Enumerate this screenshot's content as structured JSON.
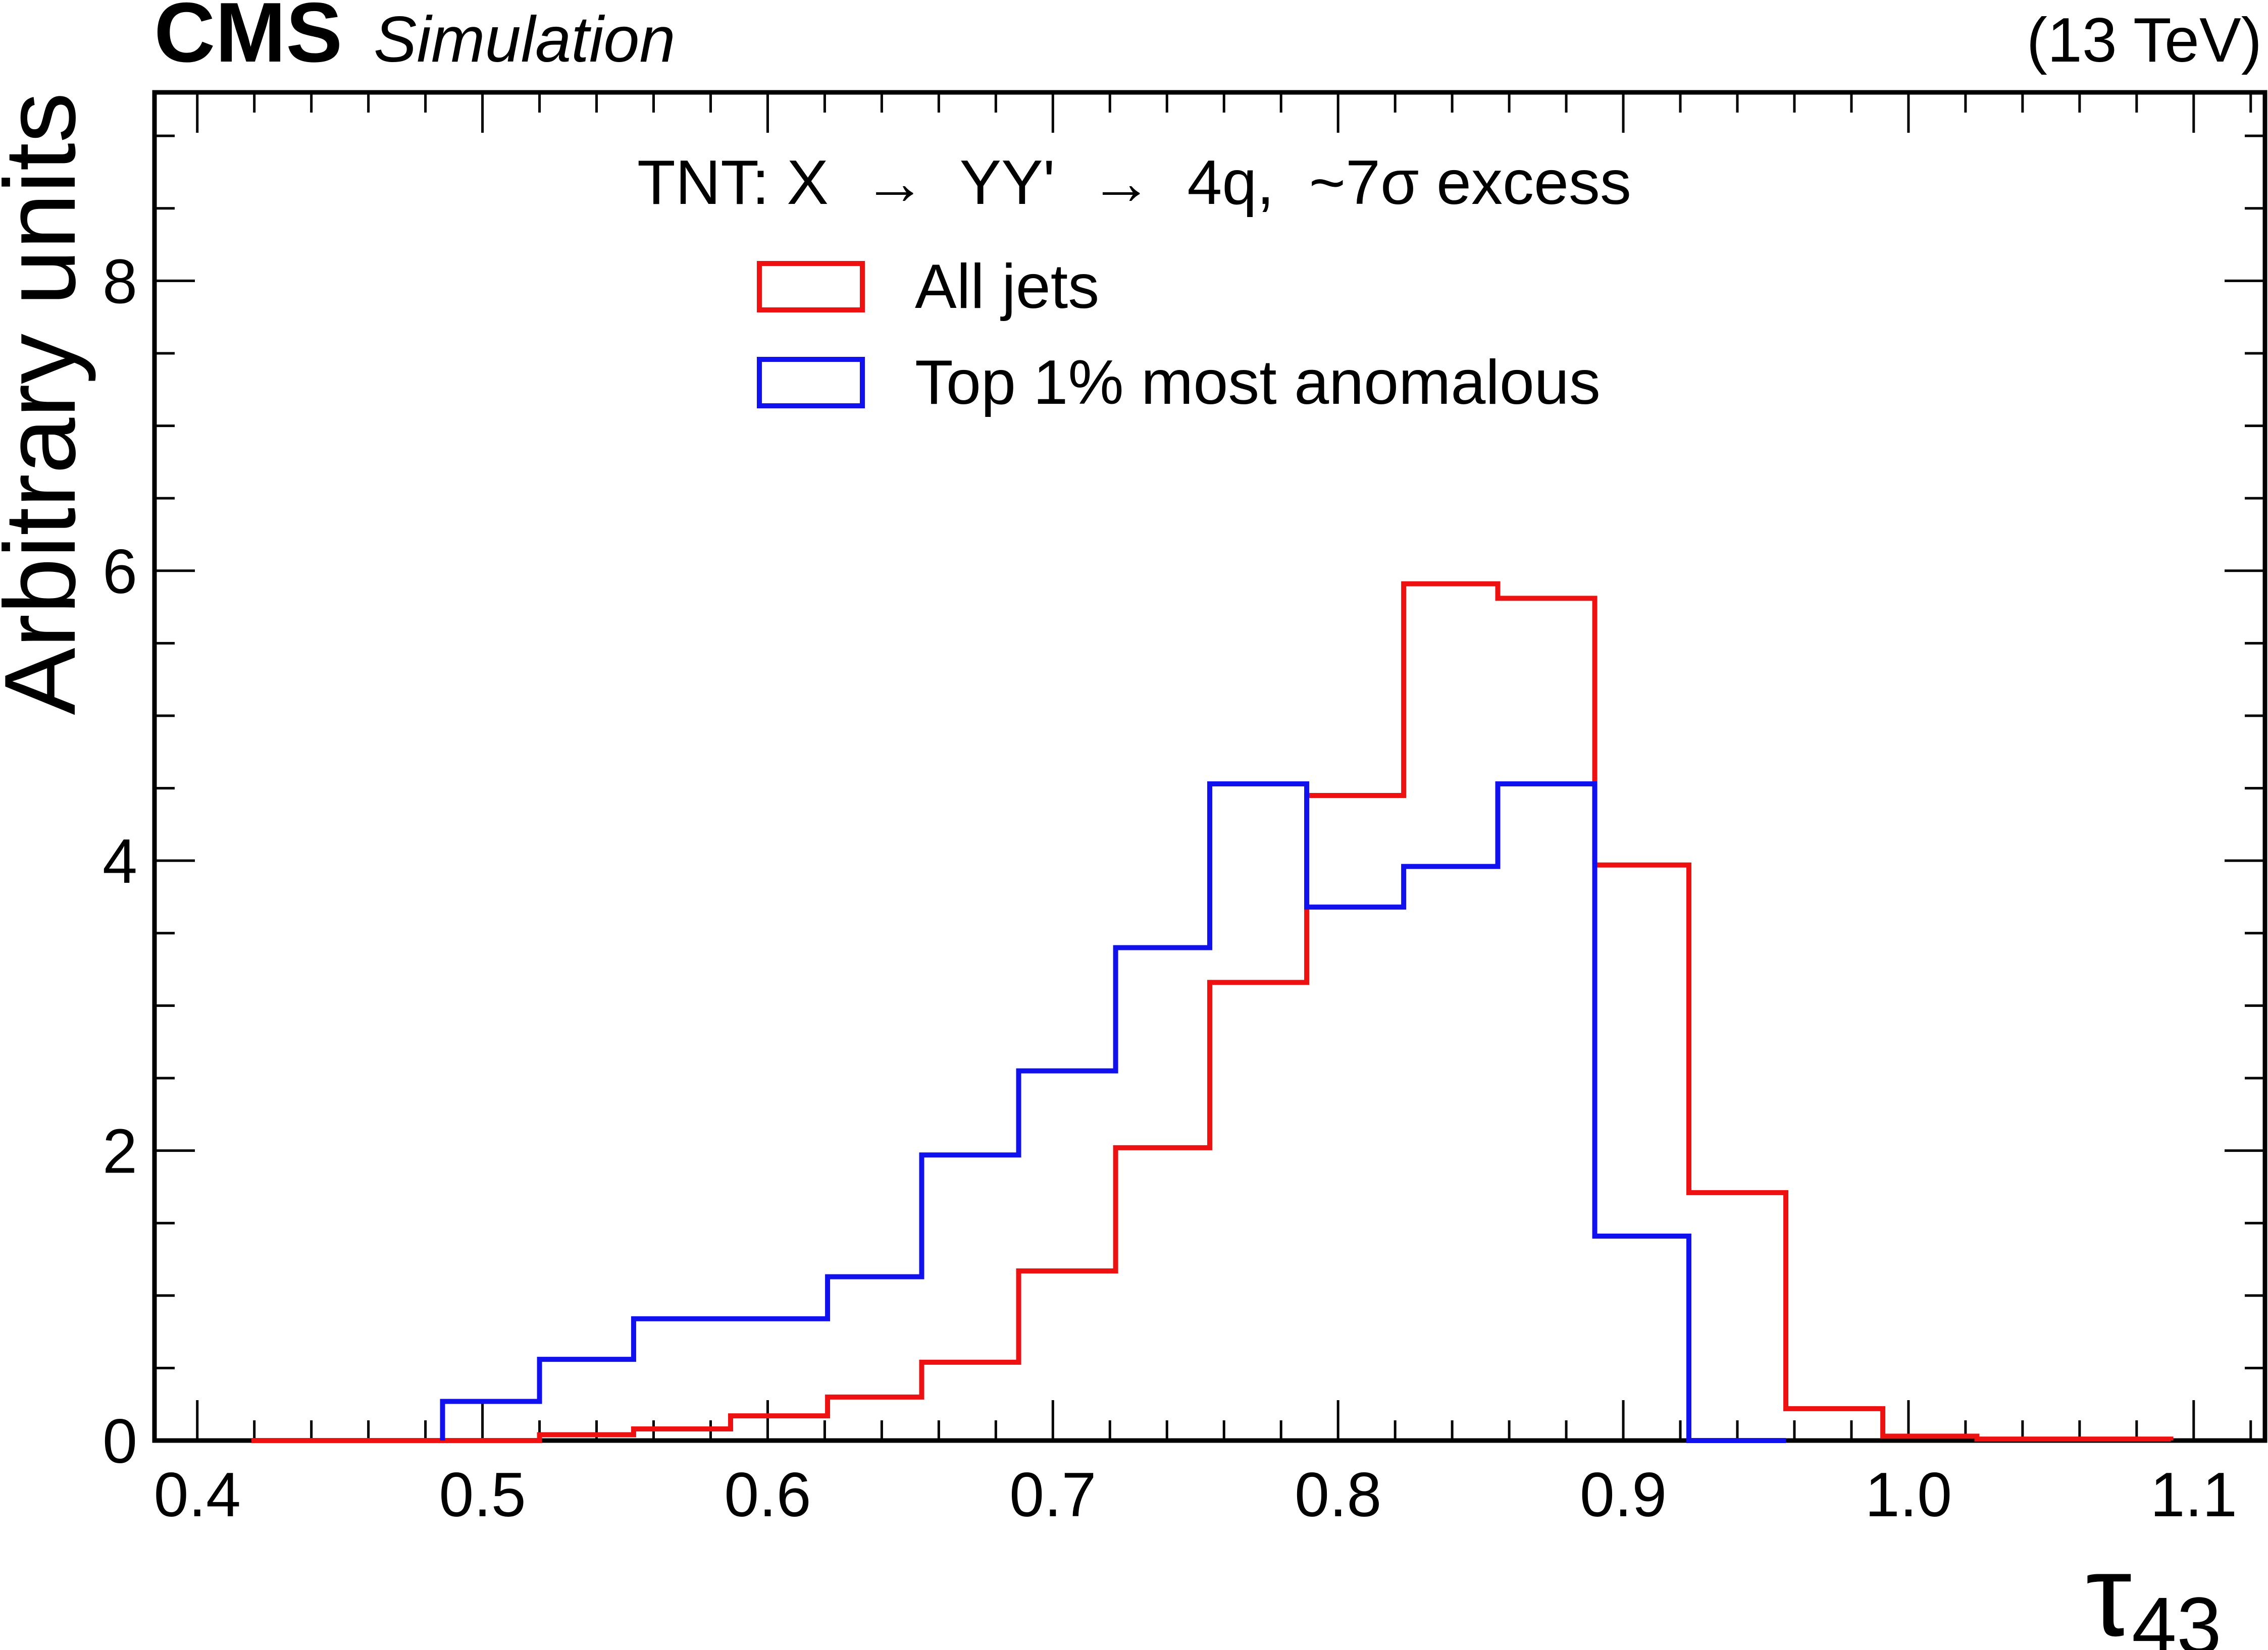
{
  "header": {
    "experiment": "CMS",
    "label": "Simulation",
    "energy": "(13 TeV)"
  },
  "chart_data": {
    "type": "step-histogram",
    "title": "TNT: X  →  YY'  →  4q,  ~7σ excess",
    "xlabel": "τ",
    "xlabel_subscript": "43",
    "ylabel": "Arbitrary units",
    "xlim": [
      0.385,
      1.125
    ],
    "ylim": [
      0,
      9.3
    ],
    "x_ticks": [
      0.4,
      0.5,
      0.6,
      0.7,
      0.8,
      0.9,
      1.0,
      1.1
    ],
    "x_tick_labels": [
      "0.4",
      "0.5",
      "0.6",
      "0.7",
      "0.8",
      "0.9",
      "1.0",
      "1.1"
    ],
    "y_ticks": [
      0,
      2,
      4,
      6,
      8
    ],
    "y_tick_labels": [
      "0",
      "2",
      "4",
      "6",
      "8"
    ],
    "legend_position": "top-center",
    "series": [
      {
        "name": "All jets",
        "color": "#ee1111",
        "bins": [
          [
            0.419,
            0.486,
            0.0
          ],
          [
            0.486,
            0.52,
            0.0
          ],
          [
            0.52,
            0.553,
            0.04
          ],
          [
            0.553,
            0.587,
            0.08
          ],
          [
            0.587,
            0.621,
            0.17
          ],
          [
            0.621,
            0.654,
            0.3
          ],
          [
            0.654,
            0.688,
            0.54
          ],
          [
            0.688,
            0.722,
            1.17
          ],
          [
            0.722,
            0.755,
            2.02
          ],
          [
            0.755,
            0.789,
            3.16
          ],
          [
            0.789,
            0.823,
            4.45
          ],
          [
            0.823,
            0.856,
            5.91
          ],
          [
            0.856,
            0.89,
            5.81
          ],
          [
            0.89,
            0.923,
            3.97
          ],
          [
            0.923,
            0.957,
            1.71
          ],
          [
            0.957,
            0.991,
            0.22
          ],
          [
            0.991,
            1.024,
            0.03
          ],
          [
            1.024,
            1.092,
            0.01
          ]
        ]
      },
      {
        "name": "Top 1% most anomalous",
        "color": "#1111ee",
        "bins": [
          [
            0.486,
            0.52,
            0.27
          ],
          [
            0.52,
            0.553,
            0.56
          ],
          [
            0.553,
            0.587,
            0.84
          ],
          [
            0.587,
            0.621,
            0.84
          ],
          [
            0.621,
            0.654,
            1.13
          ],
          [
            0.654,
            0.688,
            1.97
          ],
          [
            0.688,
            0.722,
            2.55
          ],
          [
            0.722,
            0.755,
            3.4
          ],
          [
            0.755,
            0.789,
            4.53
          ],
          [
            0.789,
            0.823,
            3.68
          ],
          [
            0.823,
            0.856,
            3.96
          ],
          [
            0.856,
            0.89,
            4.53
          ],
          [
            0.89,
            0.923,
            1.41
          ],
          [
            0.923,
            0.957,
            0.0
          ]
        ]
      }
    ]
  }
}
